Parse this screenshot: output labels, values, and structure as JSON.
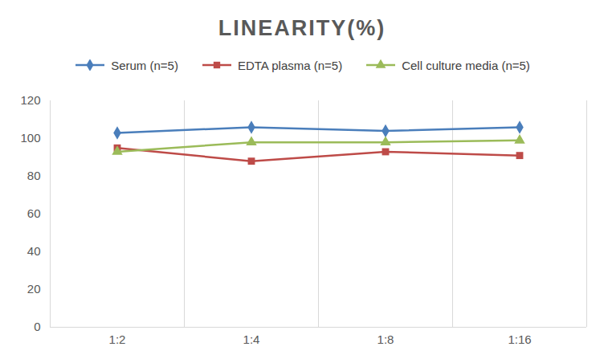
{
  "chart_data": {
    "type": "line",
    "title": "LINEARITY(%)",
    "categories": [
      "1:2",
      "1:4",
      "1:8",
      "1:16"
    ],
    "series": [
      {
        "name": "Serum (n=5)",
        "color": "#4a7ebb",
        "marker": "diamond",
        "values": [
          103,
          106,
          104,
          106
        ]
      },
      {
        "name": "EDTA plasma (n=5)",
        "color": "#be4b48",
        "marker": "square",
        "values": [
          95,
          88,
          93,
          91
        ]
      },
      {
        "name": "Cell culture media (n=5)",
        "color": "#9bbb59",
        "marker": "triangle",
        "values": [
          93,
          98,
          98,
          99
        ]
      }
    ],
    "ylim": [
      0,
      120
    ],
    "yticks": [
      0,
      20,
      40,
      60,
      80,
      100,
      120
    ],
    "grid": true,
    "legend": "top"
  }
}
